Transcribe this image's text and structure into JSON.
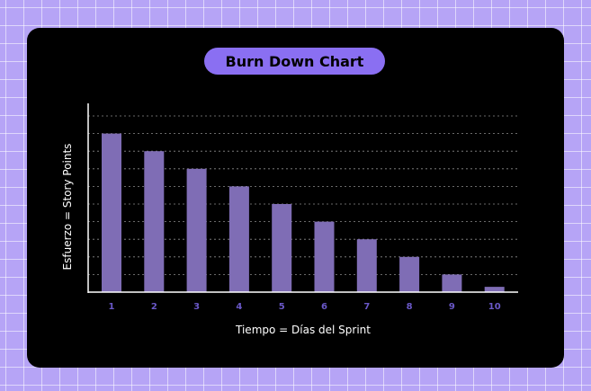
{
  "chart_data": {
    "type": "bar",
    "title": "Burn Down Chart",
    "xlabel": "Tiempo = Días del Sprint",
    "ylabel": "Esfuerzo = Story Points",
    "categories": [
      "1",
      "2",
      "3",
      "4",
      "5",
      "6",
      "7",
      "8",
      "9",
      "10"
    ],
    "values": [
      9,
      8,
      7,
      6,
      5,
      4,
      3,
      2,
      1,
      0.3
    ],
    "ylim": [
      0,
      10
    ],
    "yticks": 10,
    "grid": true,
    "legend": "none"
  },
  "colors": {
    "background": "#b6a4f6",
    "card": "#000000",
    "title_pill": "#8a6ff2",
    "bar": "#7f6db5",
    "tick_label": "#6a58c8",
    "axis": "#ffffff",
    "grid": "#8c8c8c"
  }
}
